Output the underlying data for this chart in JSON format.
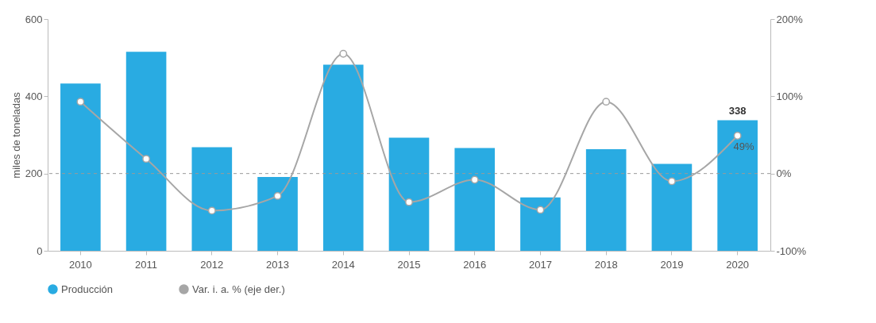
{
  "chart_data": {
    "type": "bar",
    "ylabel": "miles de toneladas",
    "categories": [
      "2010",
      "2011",
      "2012",
      "2013",
      "2014",
      "2015",
      "2016",
      "2017",
      "2018",
      "2019",
      "2020"
    ],
    "series": [
      {
        "name": "Producción",
        "color": "#29abe2",
        "values": [
          433,
          515,
          268,
          191,
          482,
          293,
          266,
          138,
          263,
          225,
          338
        ],
        "value_labels": [
          null,
          null,
          null,
          null,
          null,
          null,
          null,
          null,
          null,
          null,
          "338"
        ]
      },
      {
        "name": "Var. i. a. % (eje der.)",
        "type": "line",
        "axis": "y2",
        "color": "#a6a6a6",
        "values": [
          93,
          19,
          -48,
          -29,
          155,
          -37,
          -8,
          -47,
          93,
          -10,
          49
        ],
        "value_labels": [
          null,
          null,
          null,
          null,
          null,
          null,
          null,
          null,
          null,
          null,
          "49%"
        ]
      }
    ],
    "ylim": [
      0,
      600
    ],
    "yticks": [
      0,
      200,
      400,
      600
    ],
    "y2lim": [
      -100,
      200
    ],
    "y2ticks": [
      {
        "value": -100,
        "label": "-100%"
      },
      {
        "value": 0,
        "label": "0%"
      },
      {
        "value": 100,
        "label": "100%"
      },
      {
        "value": 200,
        "label": "200%"
      }
    ],
    "ref_lines": [
      {
        "axis": "y2",
        "value": 0,
        "label": null,
        "color": "#999999",
        "line_style": "dashed"
      }
    ],
    "marker": "circle",
    "legend": "bottom",
    "grid": false
  }
}
